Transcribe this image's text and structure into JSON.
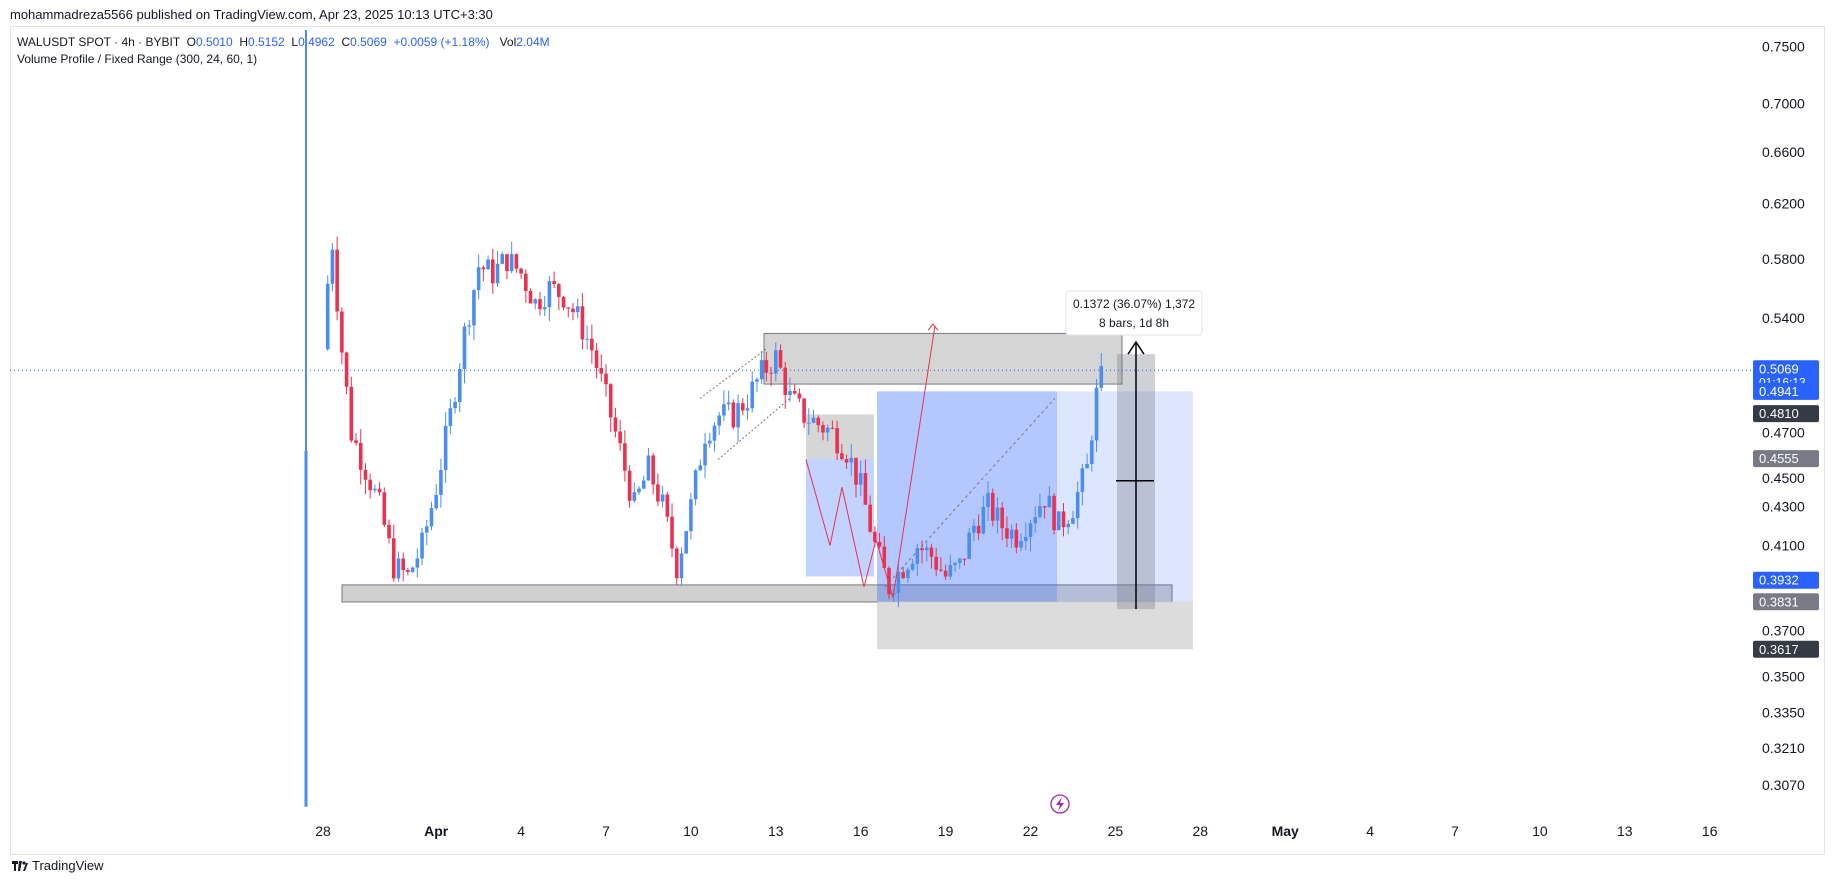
{
  "header": {
    "published": "mohammadreza5566 published on TradingView.com, Apr 23, 2025 10:13 UTC+3:30"
  },
  "legend": {
    "symbol": "WALUSDT SPOT · 4h · BYBIT",
    "o_label": "O",
    "o": "0.5010",
    "h_label": "H",
    "h": "0.5152",
    "l_label": "L",
    "l": "0.4962",
    "c_label": "C",
    "c": "0.5069",
    "change": "+0.0059 (+1.18%)",
    "vol_label": "Vol",
    "vol": "2.04M",
    "indicator": "Volume Profile / Fixed Range (300, 24, 60, 1)"
  },
  "measure": {
    "line1": "0.1372 (36.07%) 1,372",
    "line2": "8 bars, 1d 8h"
  },
  "footer": {
    "brand": "TradingView"
  },
  "colors": {
    "up": "#4c8ef0",
    "down": "#e8324f",
    "accent": "#2962ff",
    "zone_gray": "#9e9e9e",
    "box_blue": "#2962ff"
  },
  "chart_data": {
    "type": "candlestick",
    "y_scale": "log",
    "ylim": [
      0.296,
      0.765
    ],
    "y_ticks": [
      "0.7500",
      "0.7000",
      "0.6600",
      "0.6200",
      "0.5800",
      "0.5400",
      "0.4300",
      "0.4100",
      "0.3700",
      "0.3500",
      "0.3350",
      "0.3210",
      "0.3070"
    ],
    "y_tick_values": [
      0.75,
      0.7,
      0.66,
      0.62,
      0.58,
      0.54,
      0.43,
      0.41,
      0.37,
      0.35,
      0.335,
      0.321,
      0.307
    ],
    "partial_ticks": [
      {
        "value": 0.47,
        "label": "0.4700"
      },
      {
        "value": 0.445,
        "label": "0.4500"
      }
    ],
    "x_ticks": [
      "28",
      "Apr",
      "4",
      "7",
      "10",
      "13",
      "16",
      "19",
      "22",
      "25",
      "28",
      "May",
      "4",
      "7",
      "10",
      "13",
      "16"
    ],
    "x_tick_day_index": [
      0,
      4,
      7,
      10,
      13,
      16,
      19,
      22,
      25,
      28,
      31,
      34,
      37,
      40,
      43,
      46,
      49
    ],
    "price_tags": [
      {
        "label": "0.5069",
        "sub": "01:16:13",
        "value": 0.5069,
        "color": "#2962ff"
      },
      {
        "label": "0.4941",
        "value": 0.4941,
        "color": "#2962ff"
      },
      {
        "label": "0.4810",
        "value": 0.481,
        "color": "#363a45"
      },
      {
        "label": "0.4555",
        "value": 0.4555,
        "color": "#787b86"
      },
      {
        "label": "0.3932",
        "value": 0.3932,
        "color": "#2962ff"
      },
      {
        "label": "0.3831",
        "value": 0.3831,
        "color": "#787b86"
      },
      {
        "label": "0.3617",
        "value": 0.3617,
        "color": "#363a45"
      }
    ],
    "current_price": 0.5069,
    "series_close_path": [
      [
        0,
        0.52
      ],
      [
        0.3,
        0.6
      ],
      [
        0.6,
        0.53
      ],
      [
        1,
        0.47
      ],
      [
        1.5,
        0.45
      ],
      [
        2,
        0.43
      ],
      [
        2.5,
        0.4
      ],
      [
        3,
        0.395
      ],
      [
        3.5,
        0.41
      ],
      [
        4,
        0.44
      ],
      [
        4.5,
        0.48
      ],
      [
        5,
        0.53
      ],
      [
        5.5,
        0.575
      ],
      [
        6,
        0.57
      ],
      [
        6.5,
        0.58
      ],
      [
        7,
        0.57
      ],
      [
        7.5,
        0.55
      ],
      [
        8,
        0.56
      ],
      [
        8.5,
        0.555
      ],
      [
        9,
        0.54
      ],
      [
        9.5,
        0.52
      ],
      [
        10,
        0.49
      ],
      [
        10.5,
        0.46
      ],
      [
        11,
        0.43
      ],
      [
        11.5,
        0.45
      ],
      [
        12,
        0.43
      ],
      [
        12.5,
        0.4
      ],
      [
        13,
        0.43
      ],
      [
        13.5,
        0.47
      ],
      [
        14,
        0.48
      ],
      [
        14.5,
        0.48
      ],
      [
        15,
        0.49
      ],
      [
        15.5,
        0.505
      ],
      [
        16,
        0.515
      ],
      [
        16.5,
        0.49
      ],
      [
        17,
        0.48
      ],
      [
        17.5,
        0.475
      ],
      [
        18,
        0.47
      ],
      [
        18.5,
        0.46
      ],
      [
        19,
        0.44
      ],
      [
        19.5,
        0.41
      ],
      [
        20,
        0.39
      ],
      [
        20.5,
        0.4
      ],
      [
        21,
        0.41
      ],
      [
        21.5,
        0.405
      ],
      [
        22,
        0.395
      ],
      [
        22.5,
        0.4
      ],
      [
        23,
        0.42
      ],
      [
        23.5,
        0.43
      ],
      [
        24,
        0.42
      ],
      [
        24.5,
        0.415
      ],
      [
        25,
        0.425
      ],
      [
        25.5,
        0.435
      ],
      [
        26,
        0.42
      ],
      [
        26.5,
        0.43
      ],
      [
        27,
        0.45
      ],
      [
        27.3,
        0.49
      ],
      [
        27.6,
        0.507
      ]
    ]
  }
}
